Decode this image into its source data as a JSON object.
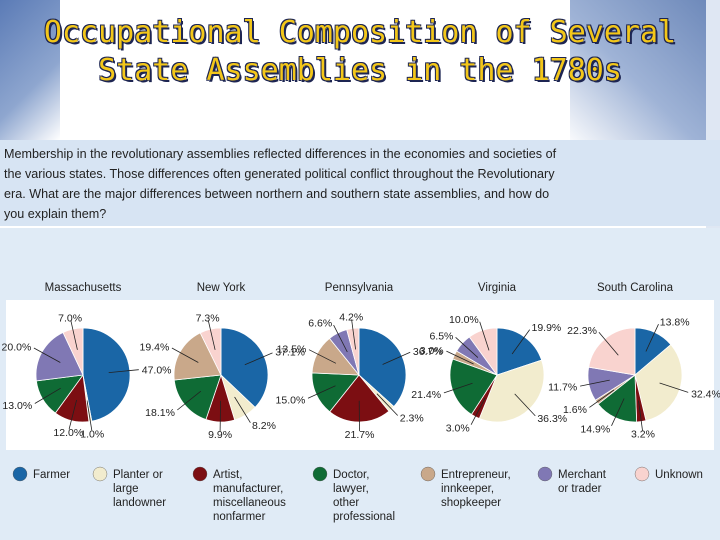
{
  "title": {
    "line1": "Occupational Composition of Several",
    "line2": "State Assemblies in the 1780s"
  },
  "caption": "Membership in the revolutionary assemblies reflected differences in the economies and societies of the various states. Those differences often generated political conflict throughout the Revolutionary era. What are the major differences between northern and southern state assemblies, and how do you explain them?",
  "colors": {
    "farmer": "#1a66a6",
    "planter": "#f2ecce",
    "artist": "#7c0e12",
    "doctor": "#0f6b35",
    "entrepreneur": "#c9a88a",
    "merchant": "#8078b4",
    "unknown": "#f9d3cf"
  },
  "legend": [
    {
      "key": "farmer",
      "label": [
        "Farmer"
      ]
    },
    {
      "key": "planter",
      "label": [
        "Planter or",
        "large",
        "landowner"
      ]
    },
    {
      "key": "artist",
      "label": [
        "Artist,",
        "manufacturer,",
        "miscellaneous",
        "nonfarmer"
      ]
    },
    {
      "key": "doctor",
      "label": [
        "Doctor,",
        "lawyer,",
        "other",
        "professional"
      ]
    },
    {
      "key": "entrepreneur",
      "label": [
        "Entrepreneur,",
        "innkeeper,",
        "shopkeeper"
      ]
    },
    {
      "key": "merchant",
      "label": [
        "Merchant",
        "or trader"
      ]
    },
    {
      "key": "unknown",
      "label": [
        "Unknown"
      ]
    }
  ],
  "chart_data": [
    {
      "type": "pie",
      "title": "Massachusetts",
      "slices": [
        {
          "category": "farmer",
          "value": 47.0,
          "label": "47.0%"
        },
        {
          "category": "planter",
          "value": 1.0,
          "label": "1.0%"
        },
        {
          "category": "artist",
          "value": 12.0,
          "label": "12.0%"
        },
        {
          "category": "doctor",
          "value": 13.0,
          "label": "13.0%"
        },
        {
          "category": "merchant",
          "value": 20.0,
          "label": "20.0%"
        },
        {
          "category": "unknown",
          "value": 7.0,
          "label": "7.0%"
        }
      ]
    },
    {
      "type": "pie",
      "title": "New York",
      "slices": [
        {
          "category": "farmer",
          "value": 37.1,
          "label": "37.1%"
        },
        {
          "category": "planter",
          "value": 8.2,
          "label": "8.2%"
        },
        {
          "category": "artist",
          "value": 9.9,
          "label": "9.9%"
        },
        {
          "category": "doctor",
          "value": 18.1,
          "label": "18.1%"
        },
        {
          "category": "entrepreneur",
          "value": 19.4,
          "label": "19.4%"
        },
        {
          "category": "unknown",
          "value": 7.3,
          "label": "7.3%"
        }
      ]
    },
    {
      "type": "pie",
      "title": "Pennsylvania",
      "slices": [
        {
          "category": "farmer",
          "value": 36.7,
          "label": "36.7%"
        },
        {
          "category": "planter",
          "value": 2.3,
          "label": "2.3%"
        },
        {
          "category": "artist",
          "value": 21.7,
          "label": "21.7%"
        },
        {
          "category": "doctor",
          "value": 15.0,
          "label": "15.0%"
        },
        {
          "category": "entrepreneur",
          "value": 13.5,
          "label": "13.5%"
        },
        {
          "category": "merchant",
          "value": 6.6,
          "label": "6.6%"
        },
        {
          "category": "unknown",
          "value": 4.2,
          "label": "4.2%"
        }
      ]
    },
    {
      "type": "pie",
      "title": "Virginia",
      "slices": [
        {
          "category": "farmer",
          "value": 19.9,
          "label": "19.9%"
        },
        {
          "category": "planter",
          "value": 36.3,
          "label": "36.3%"
        },
        {
          "category": "artist",
          "value": 3.0,
          "label": "3.0%"
        },
        {
          "category": "doctor",
          "value": 21.4,
          "label": "21.4%"
        },
        {
          "category": "entrepreneur",
          "value": 3.0,
          "label": "3.0%"
        },
        {
          "category": "merchant",
          "value": 6.5,
          "label": "6.5%"
        },
        {
          "category": "unknown",
          "value": 10.0,
          "label": "10.0%"
        }
      ]
    },
    {
      "type": "pie",
      "title": "South Carolina",
      "slices": [
        {
          "category": "farmer",
          "value": 13.8,
          "label": "13.8%"
        },
        {
          "category": "planter",
          "value": 32.4,
          "label": "32.4%"
        },
        {
          "category": "artist",
          "value": 3.2,
          "label": "3.2%"
        },
        {
          "category": "doctor",
          "value": 14.9,
          "label": "14.9%"
        },
        {
          "category": "entrepreneur",
          "value": 1.6,
          "label": "1.6%"
        },
        {
          "category": "merchant",
          "value": 11.7,
          "label": "11.7%"
        },
        {
          "category": "unknown",
          "value": 22.3,
          "label": "22.3%"
        }
      ]
    }
  ]
}
